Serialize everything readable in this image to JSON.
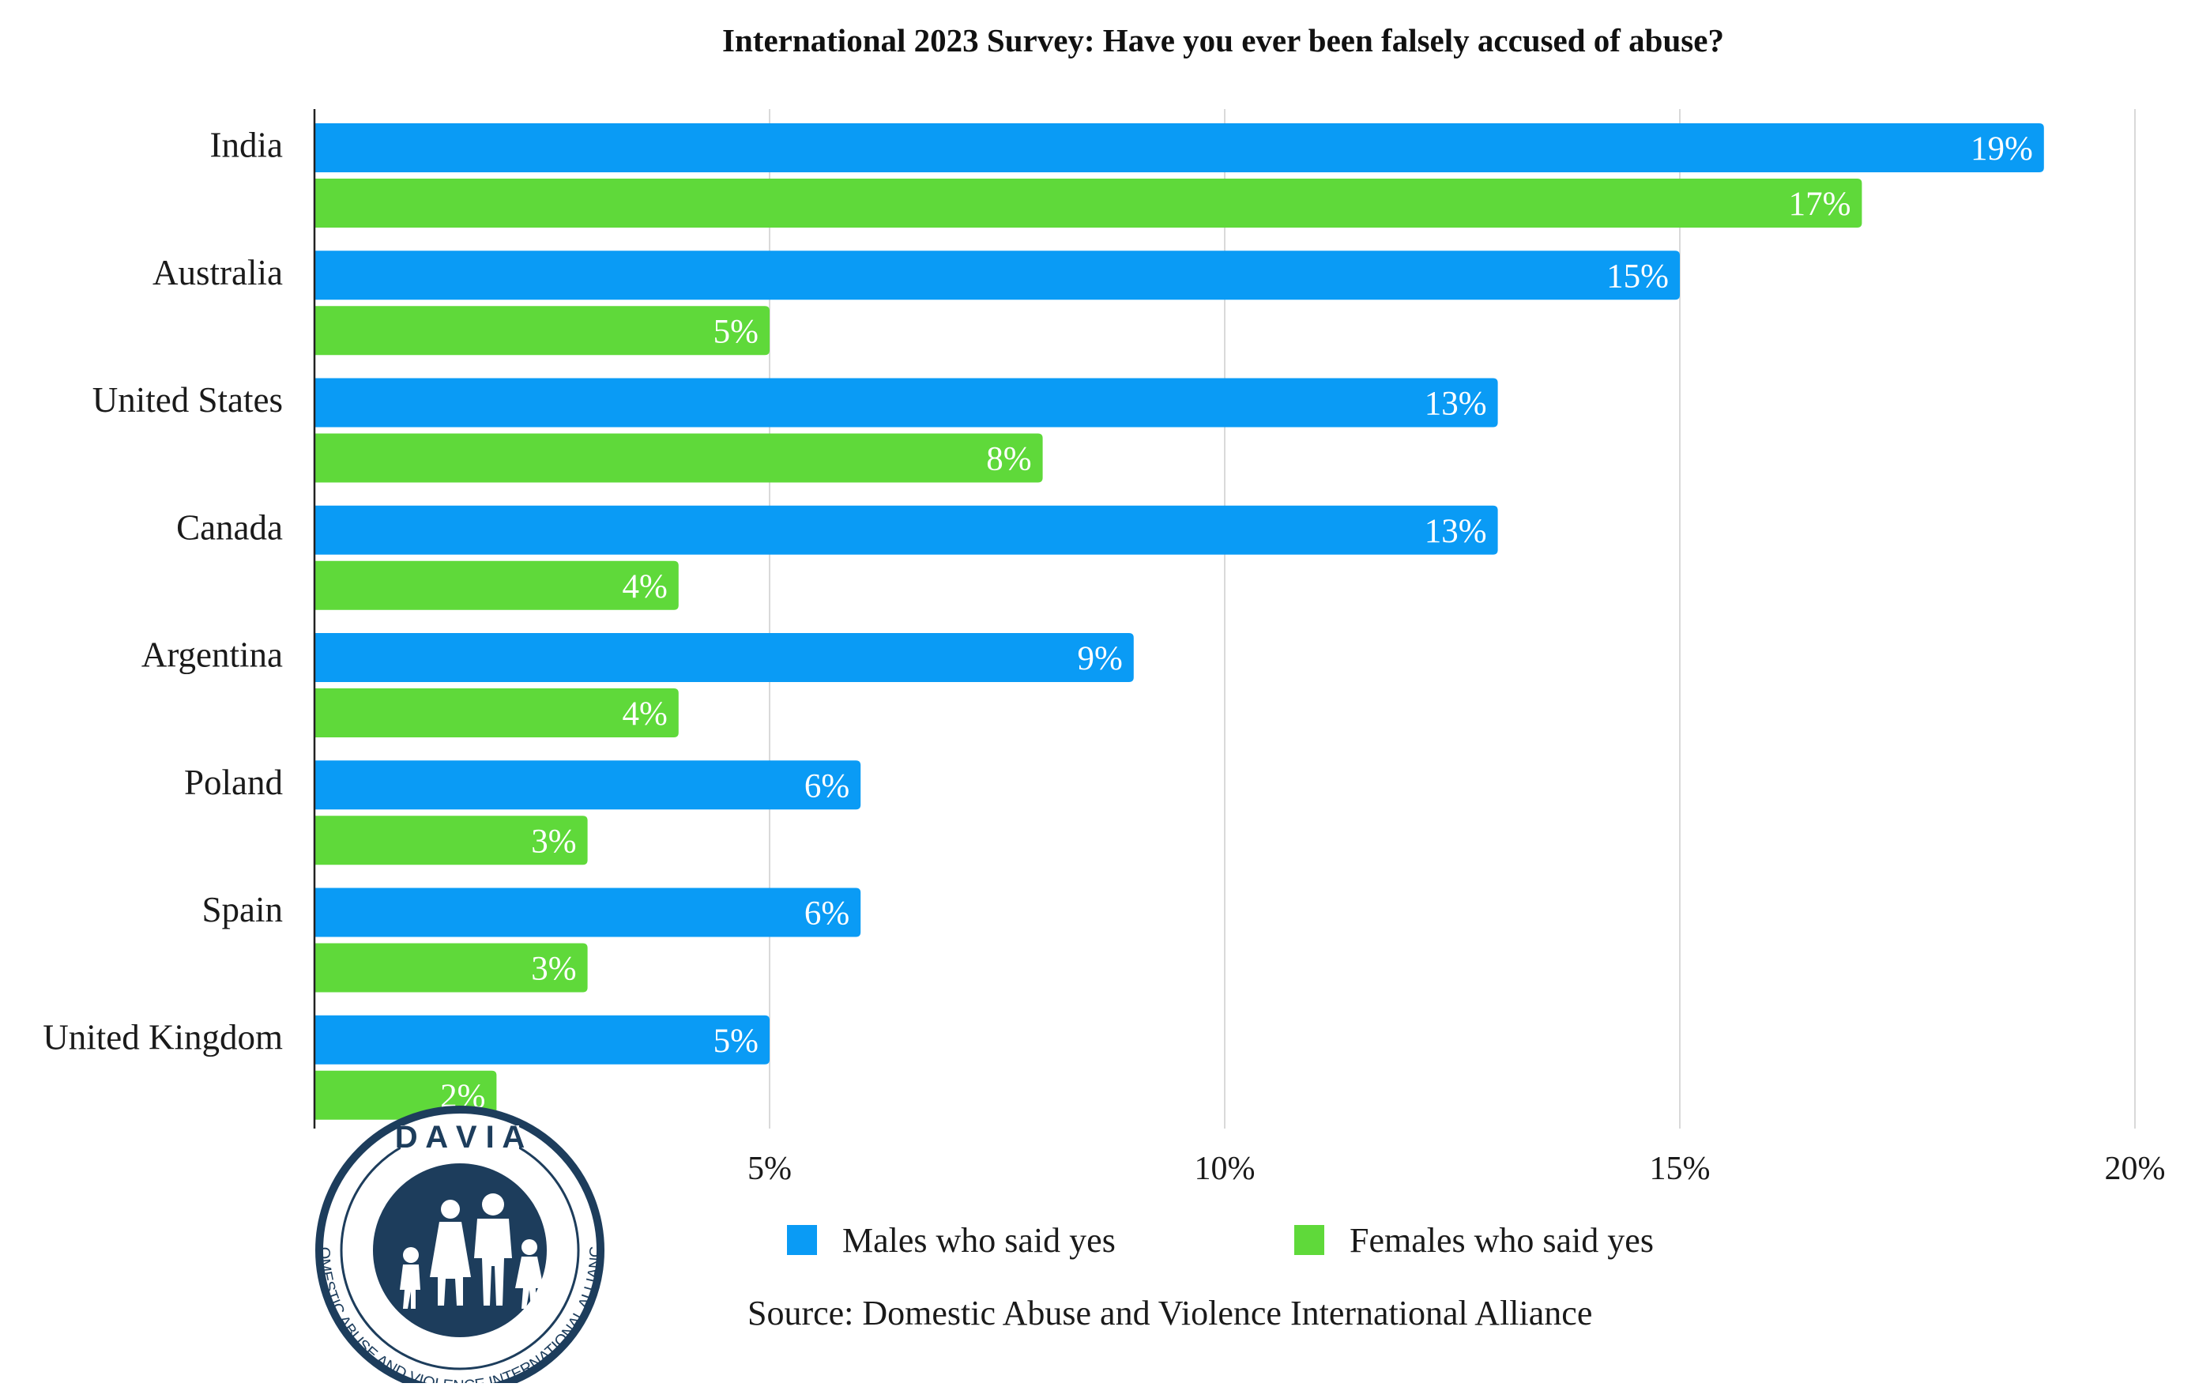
{
  "chart_data": {
    "type": "bar",
    "orientation": "horizontal",
    "title": "International 2023 Survey: Have you ever been falsely accused of abuse?",
    "categories": [
      "India",
      "Australia",
      "United States",
      "Canada",
      "Argentina",
      "Poland",
      "Spain",
      "United Kingdom"
    ],
    "series": [
      {
        "name": "Males who said yes",
        "color": "#0a9bf5",
        "values": [
          19,
          15,
          13,
          13,
          9,
          6,
          6,
          5
        ],
        "labels": [
          "19%",
          "15%",
          "13%",
          "13%",
          "9%",
          "6%",
          "6%",
          "5%"
        ]
      },
      {
        "name": "Females who said yes",
        "color": "#5fd93a",
        "values": [
          17,
          5,
          8,
          4,
          4,
          3,
          3,
          2
        ],
        "labels": [
          "17%",
          "5%",
          "8%",
          "4%",
          "4%",
          "3%",
          "3%",
          "2%"
        ]
      }
    ],
    "xlim": [
      0,
      20
    ],
    "xticks": [
      5,
      10,
      15,
      20
    ],
    "xtick_labels": [
      "5%",
      "10%",
      "15%",
      "20%"
    ],
    "grid": "vertical",
    "legend": "bottom",
    "source": "Source: Domestic Abuse and Violence International Alliance"
  },
  "logo": {
    "name": "D A V I A",
    "ring_text": "DOMESTIC ABUSE AND VIOLENCE INTERNATIONAL ALLIANCE",
    "color": "#1d3d5c",
    "icon": "family-silhouette-icon"
  }
}
